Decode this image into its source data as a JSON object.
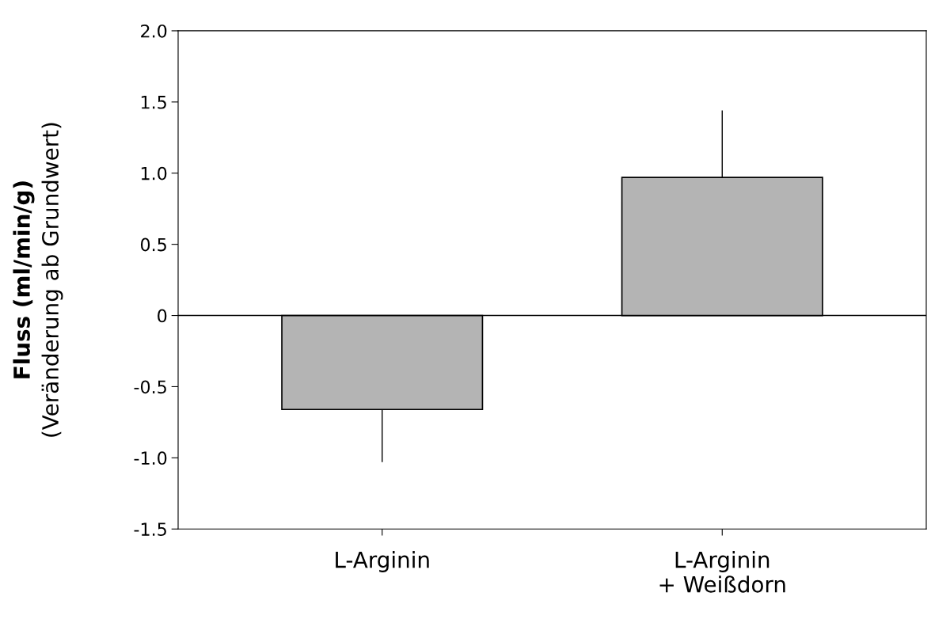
{
  "chart_data": {
    "type": "bar",
    "ylabel": "Fluss (ml/min/g)\n(Veränderung ab Grundwert)",
    "categories": [
      "L-Arginin",
      "L-Arginin\n+ Weißdorn"
    ],
    "values": [
      -0.66,
      0.97
    ],
    "errors": [
      [
        -1.03,
        -0.66
      ],
      [
        0.97,
        1.44
      ]
    ],
    "color": "#b4b4b4",
    "ylim": [
      -1.5,
      2.0
    ],
    "yticks": [
      {
        "value": -1.5,
        "label": "-1.5"
      },
      {
        "value": -1.0,
        "label": "-1.0"
      },
      {
        "value": -0.5,
        "label": "-0.5"
      },
      {
        "value": 0,
        "label": "0"
      },
      {
        "value": 0.5,
        "label": "0.5"
      },
      {
        "value": 1.0,
        "label": "1.0"
      },
      {
        "value": 1.5,
        "label": "1.5"
      },
      {
        "value": 2.0,
        "label": "2.0"
      }
    ],
    "ref_lines": [
      {
        "axis": "y",
        "value": 0,
        "color": "#000000"
      }
    ],
    "grid": false,
    "legend": false
  }
}
